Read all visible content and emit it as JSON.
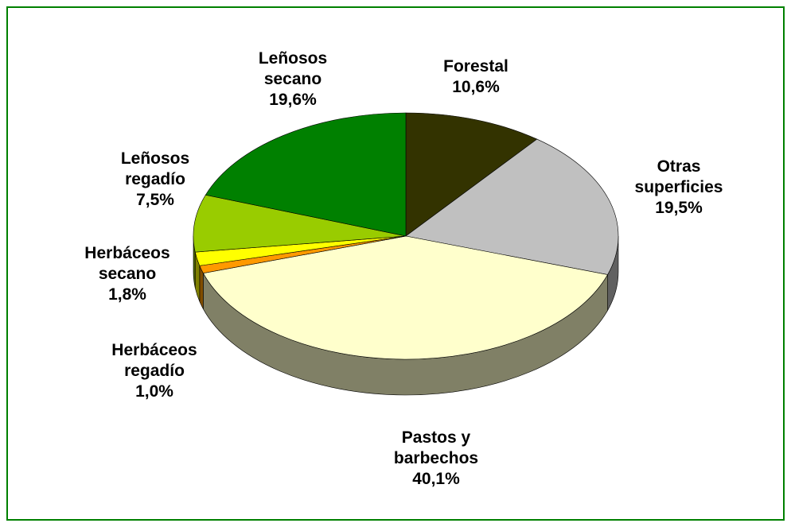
{
  "chart_data": {
    "type": "pie",
    "categories": [
      "Forestal",
      "Otras superficies",
      "Pastos y barbechos",
      "Herbáceos regadío",
      "Herbáceos secano",
      "Leñosos regadío",
      "Leñosos secano"
    ],
    "values": [
      10.6,
      19.5,
      40.1,
      1.0,
      1.8,
      7.5,
      19.6
    ],
    "value_labels": [
      "10,6%",
      "19,5%",
      "40,1%",
      "1,0%",
      "1,8%",
      "7,5%",
      "19,6%"
    ],
    "colors": [
      "#333300",
      "#c0c0c0",
      "#ffffcc",
      "#ff9900",
      "#ffff00",
      "#99cc00",
      "#008000"
    ]
  }
}
